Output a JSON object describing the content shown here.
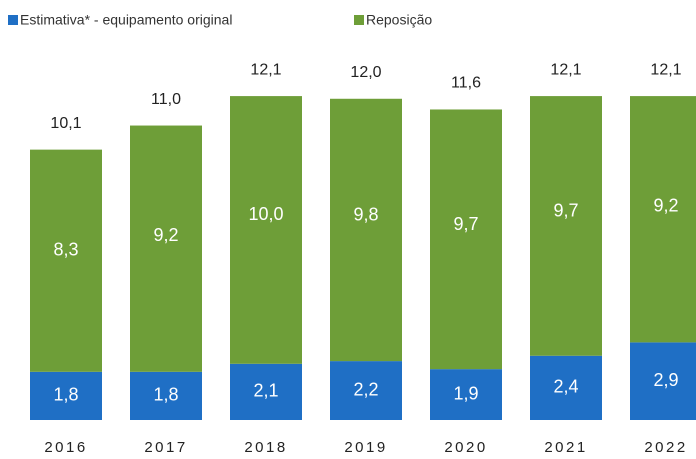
{
  "chart_data": {
    "type": "stacked-bar",
    "categories": [
      "2016",
      "2017",
      "2018",
      "2019",
      "2020",
      "2021",
      "2022"
    ],
    "series": [
      {
        "name": "Estimativa* - equipamento original",
        "color": "#1f6fc5",
        "values": [
          1.8,
          1.8,
          2.1,
          2.2,
          1.9,
          2.4,
          2.9
        ],
        "value_labels": [
          "1,8",
          "1,8",
          "2,1",
          "2,2",
          "1,9",
          "2,4",
          "2,9"
        ]
      },
      {
        "name": "Reposição",
        "color": "#6e9e38",
        "values": [
          8.3,
          9.2,
          10.0,
          9.8,
          9.7,
          9.7,
          9.2
        ],
        "value_labels": [
          "8,3",
          "9,2",
          "10,0",
          "9,8",
          "9,7",
          "9,7",
          "9,2"
        ]
      }
    ],
    "totals": [
      10.1,
      11.0,
      12.1,
      12.0,
      11.6,
      12.1,
      12.1
    ],
    "total_labels": [
      "10,1",
      "11,0",
      "12,1",
      "12,0",
      "11,6",
      "12,1",
      "12,1"
    ],
    "ylim": [
      0,
      13
    ]
  }
}
